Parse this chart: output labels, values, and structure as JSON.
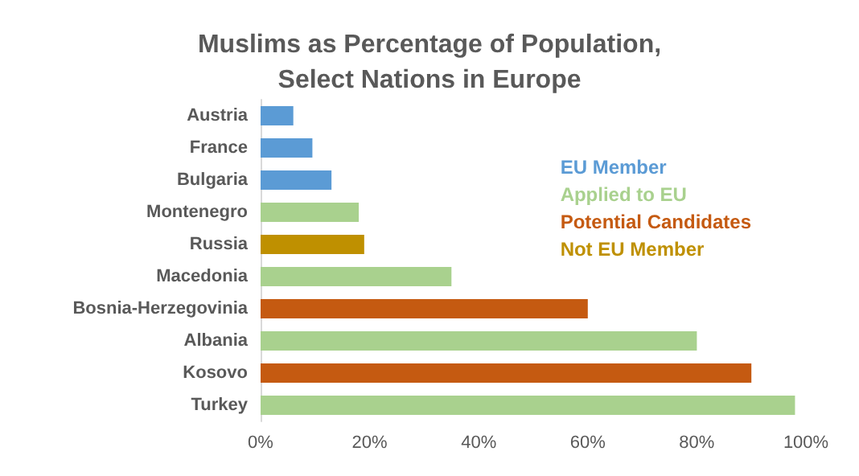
{
  "chart_data": {
    "type": "bar",
    "orientation": "horizontal",
    "stacked": true,
    "title": "Muslims as Percentage of Population,\nSelect Nations in Europe",
    "categories": [
      "Austria",
      "France",
      "Bulgaria",
      "Montenegro",
      "Russia",
      "Macedonia",
      "Bosnia-Herzegovinia",
      "Albania",
      "Kosovo",
      "Turkey"
    ],
    "series": [
      {
        "name": "EU Member",
        "color": "#5b9bd5",
        "values": [
          6,
          9.5,
          13,
          null,
          null,
          null,
          null,
          null,
          null,
          null
        ]
      },
      {
        "name": "Applied to EU",
        "color": "#a9d18e",
        "values": [
          null,
          null,
          null,
          18,
          null,
          35,
          null,
          80,
          null,
          98
        ]
      },
      {
        "name": "Potential Candidates",
        "color": "#c55a11",
        "values": [
          null,
          null,
          null,
          null,
          null,
          null,
          60,
          null,
          90,
          null
        ]
      },
      {
        "name": "Not EU Member",
        "color": "#bf9000",
        "values": [
          null,
          null,
          null,
          null,
          19,
          null,
          null,
          null,
          null,
          null
        ]
      }
    ],
    "xlim": [
      0,
      100
    ],
    "xticks": [
      {
        "value": 0,
        "label": "0%"
      },
      {
        "value": 20,
        "label": "20%"
      },
      {
        "value": 40,
        "label": "40%"
      },
      {
        "value": 60,
        "label": "60%"
      },
      {
        "value": 80,
        "label": "80%"
      },
      {
        "value": 100,
        "label": "100%"
      }
    ],
    "grid": false,
    "legend": "right"
  }
}
